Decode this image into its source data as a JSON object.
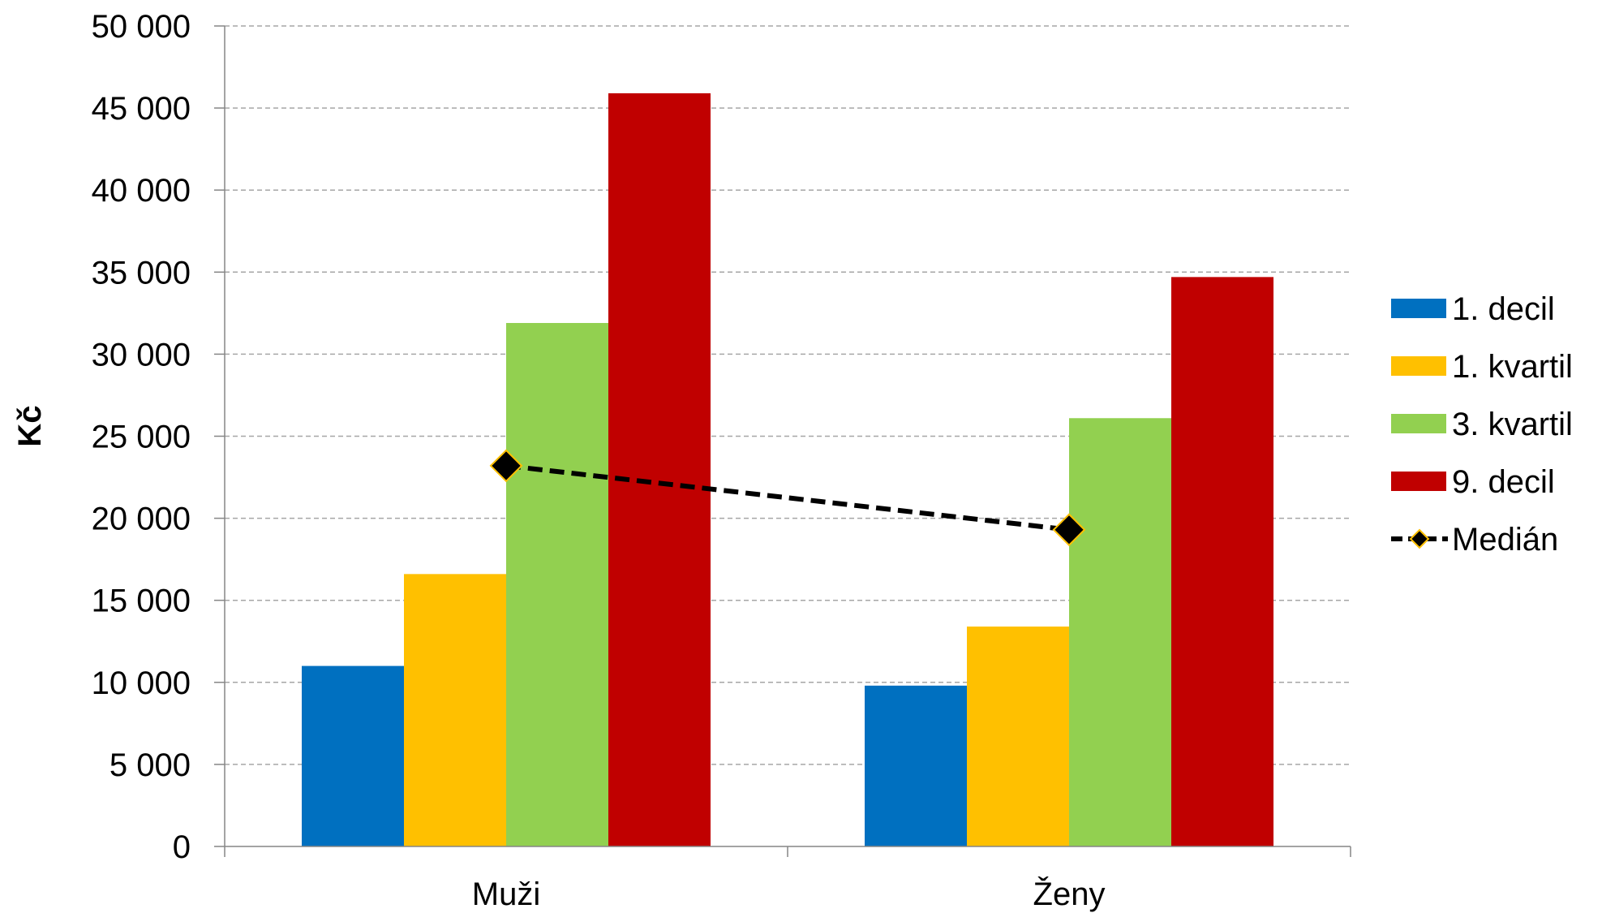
{
  "chart_data": {
    "type": "bar",
    "categories": [
      "Muži",
      "Ženy"
    ],
    "series": [
      {
        "name": "1. decil",
        "color": "#0070C0",
        "values": [
          11000,
          9800
        ]
      },
      {
        "name": "1. kvartil",
        "color": "#FFC000",
        "values": [
          16600,
          13400
        ]
      },
      {
        "name": "3. kvartil",
        "color": "#92D050",
        "values": [
          31900,
          26100
        ]
      },
      {
        "name": "9. decil",
        "color": "#C00000",
        "values": [
          45900,
          34700
        ]
      }
    ],
    "line_series": {
      "name": "Medián",
      "style": "dashed",
      "line_color": "#000000",
      "marker": "diamond",
      "marker_fill": "#000000",
      "marker_edge": "#FFC000",
      "values": [
        23200,
        19300
      ]
    },
    "ylabel": "Kč",
    "xlabel": "",
    "ylim": [
      0,
      50000
    ],
    "yticks": [
      0,
      5000,
      10000,
      15000,
      20000,
      25000,
      30000,
      35000,
      40000,
      45000,
      50000
    ],
    "ytick_labels": [
      "0",
      "5 000",
      "10 000",
      "15 000",
      "20 000",
      "25 000",
      "30 000",
      "35 000",
      "40 000",
      "45 000",
      "50 000"
    ],
    "grid": true,
    "grid_style": "dashed",
    "legend_position": "right"
  }
}
